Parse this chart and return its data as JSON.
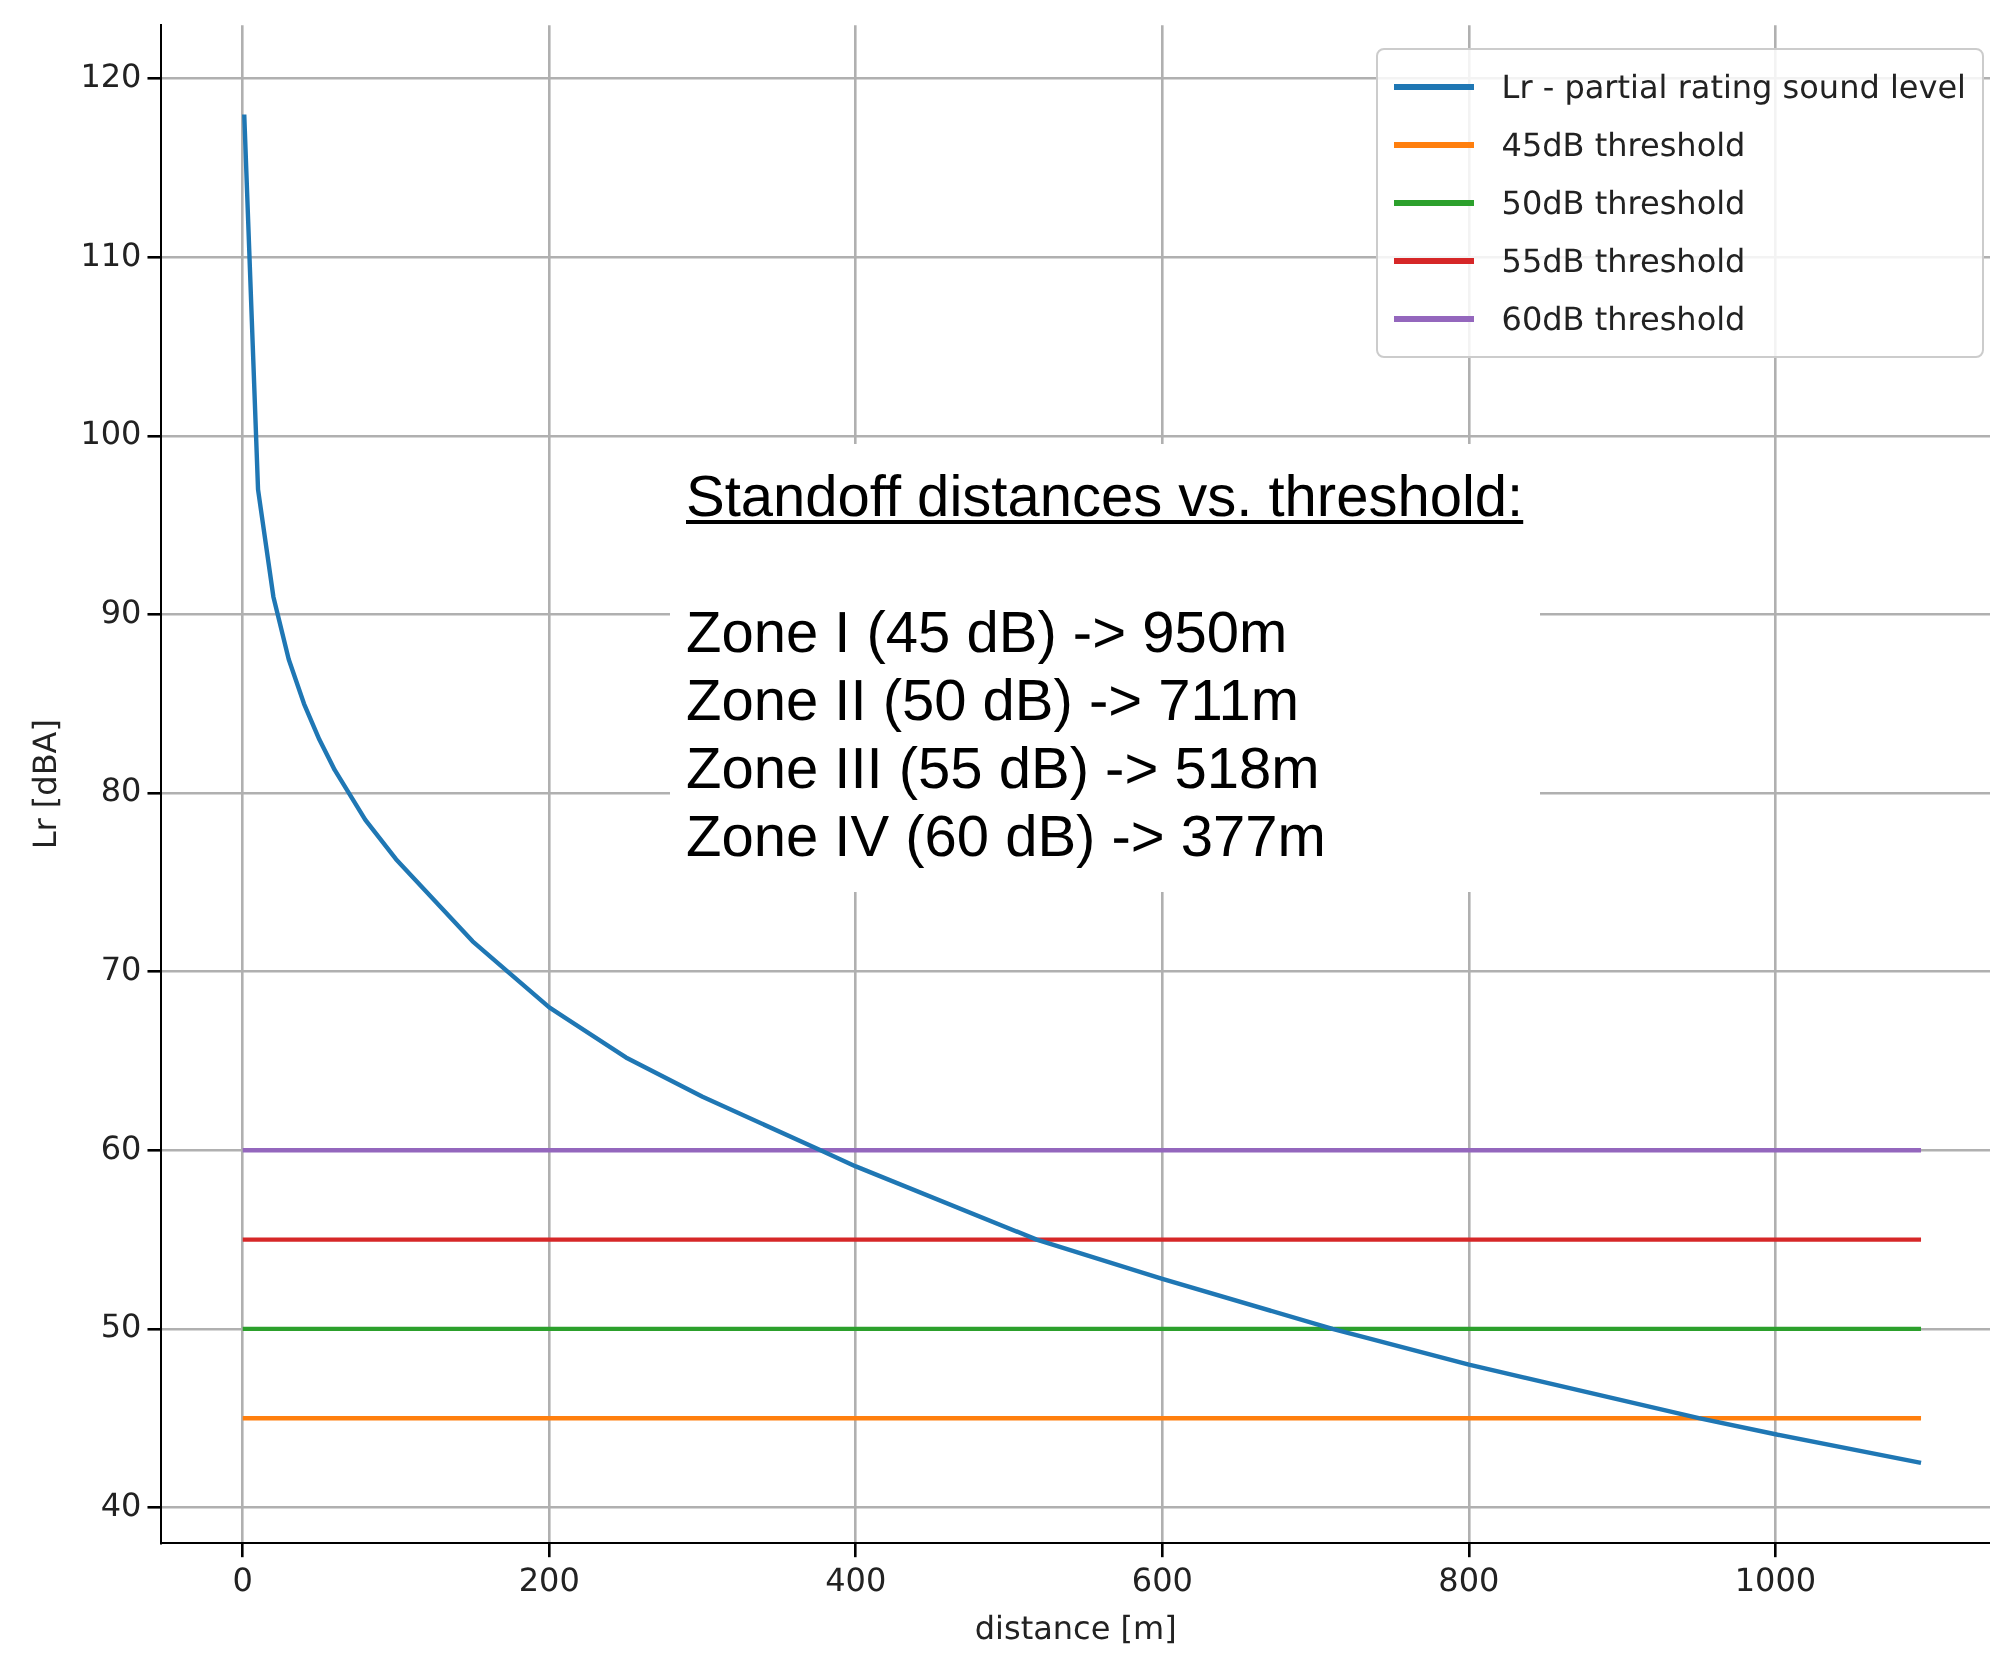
{
  "chart_data": {
    "type": "line",
    "xlabel": "distance [m]",
    "ylabel": "Lr [dBA]",
    "xlim": [
      -53,
      1140
    ],
    "ylim": [
      38,
      123
    ],
    "xticks": [
      0,
      200,
      400,
      600,
      800,
      1000
    ],
    "yticks": [
      40,
      50,
      60,
      70,
      80,
      90,
      100,
      110,
      120
    ],
    "grid": true,
    "legend": "top right",
    "marker": "none",
    "line_style": "solid",
    "series": [
      {
        "name": "Lr - partial rating sound level",
        "color": "#1f77b4",
        "x": [
          1,
          10,
          20,
          30,
          40,
          50,
          60,
          80,
          100,
          150,
          200,
          250,
          300,
          377,
          400,
          518,
          600,
          711,
          800,
          950,
          1000,
          1095
        ],
        "values": [
          118,
          97,
          91,
          87.5,
          85,
          83,
          81.3,
          78.5,
          76.3,
          71.7,
          68,
          65.2,
          63,
          60,
          59.1,
          55,
          52.8,
          50,
          48,
          45,
          44.1,
          42.5
        ]
      },
      {
        "name": "45dB threshold",
        "color": "#ff7f0e",
        "x": [
          0,
          1095
        ],
        "values": [
          45,
          45
        ]
      },
      {
        "name": "50dB threshold",
        "color": "#2ca02c",
        "x": [
          0,
          1095
        ],
        "values": [
          50,
          50
        ]
      },
      {
        "name": "55dB threshold",
        "color": "#d62728",
        "x": [
          0,
          1095
        ],
        "values": [
          55,
          55
        ]
      },
      {
        "name": "60dB threshold",
        "color": "#9467bd",
        "x": [
          0,
          1095
        ],
        "values": [
          60,
          60
        ]
      }
    ],
    "annotations": [
      "Standoff distances vs. threshold:",
      "Zone I (45 dB) -> 950m",
      "Zone II (50 dB) -> 711m",
      "Zone III (55 dB) -> 518m",
      "Zone IV (60 dB) -> 377m"
    ]
  }
}
